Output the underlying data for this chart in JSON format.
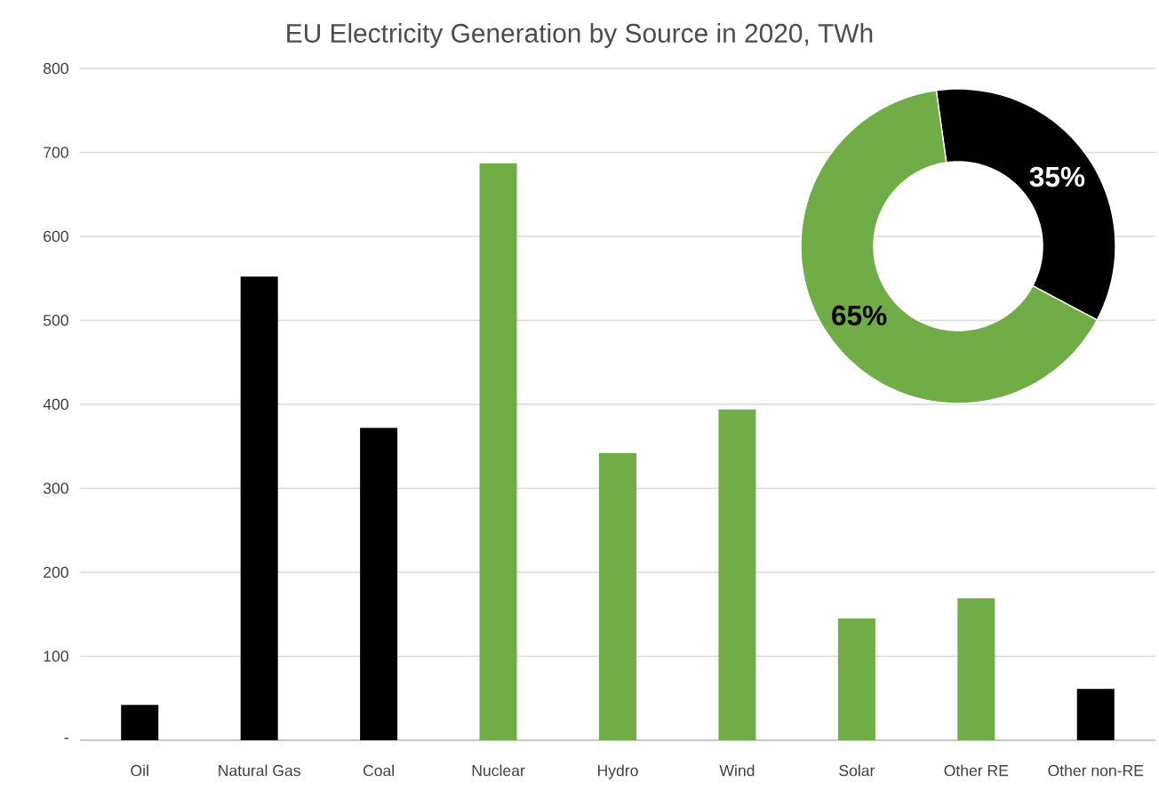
{
  "chart_data": [
    {
      "type": "bar",
      "title": "EU Electricity Generation by Source in 2020, TWh",
      "categories": [
        "Oil",
        "Natural Gas",
        "Coal",
        "Nuclear",
        "Hydro",
        "Wind",
        "Solar",
        "Other RE",
        "Other non-RE"
      ],
      "values": [
        42,
        552,
        372,
        687,
        342,
        394,
        145,
        169,
        61
      ],
      "colors": [
        "#000000",
        "#000000",
        "#000000",
        "#70ad47",
        "#70ad47",
        "#70ad47",
        "#70ad47",
        "#70ad47",
        "#000000"
      ],
      "ylim": [
        0,
        800
      ],
      "yticks": [
        {
          "value": 0,
          "label": "-"
        },
        100,
        200,
        300,
        400,
        500,
        600,
        700,
        800
      ],
      "grid": "y"
    },
    {
      "type": "donut",
      "categories": [
        null,
        null
      ],
      "values": [
        35,
        65
      ],
      "colors": [
        "#000000",
        "#70ad47"
      ],
      "value_labels": [
        "35%",
        "65%"
      ]
    }
  ]
}
